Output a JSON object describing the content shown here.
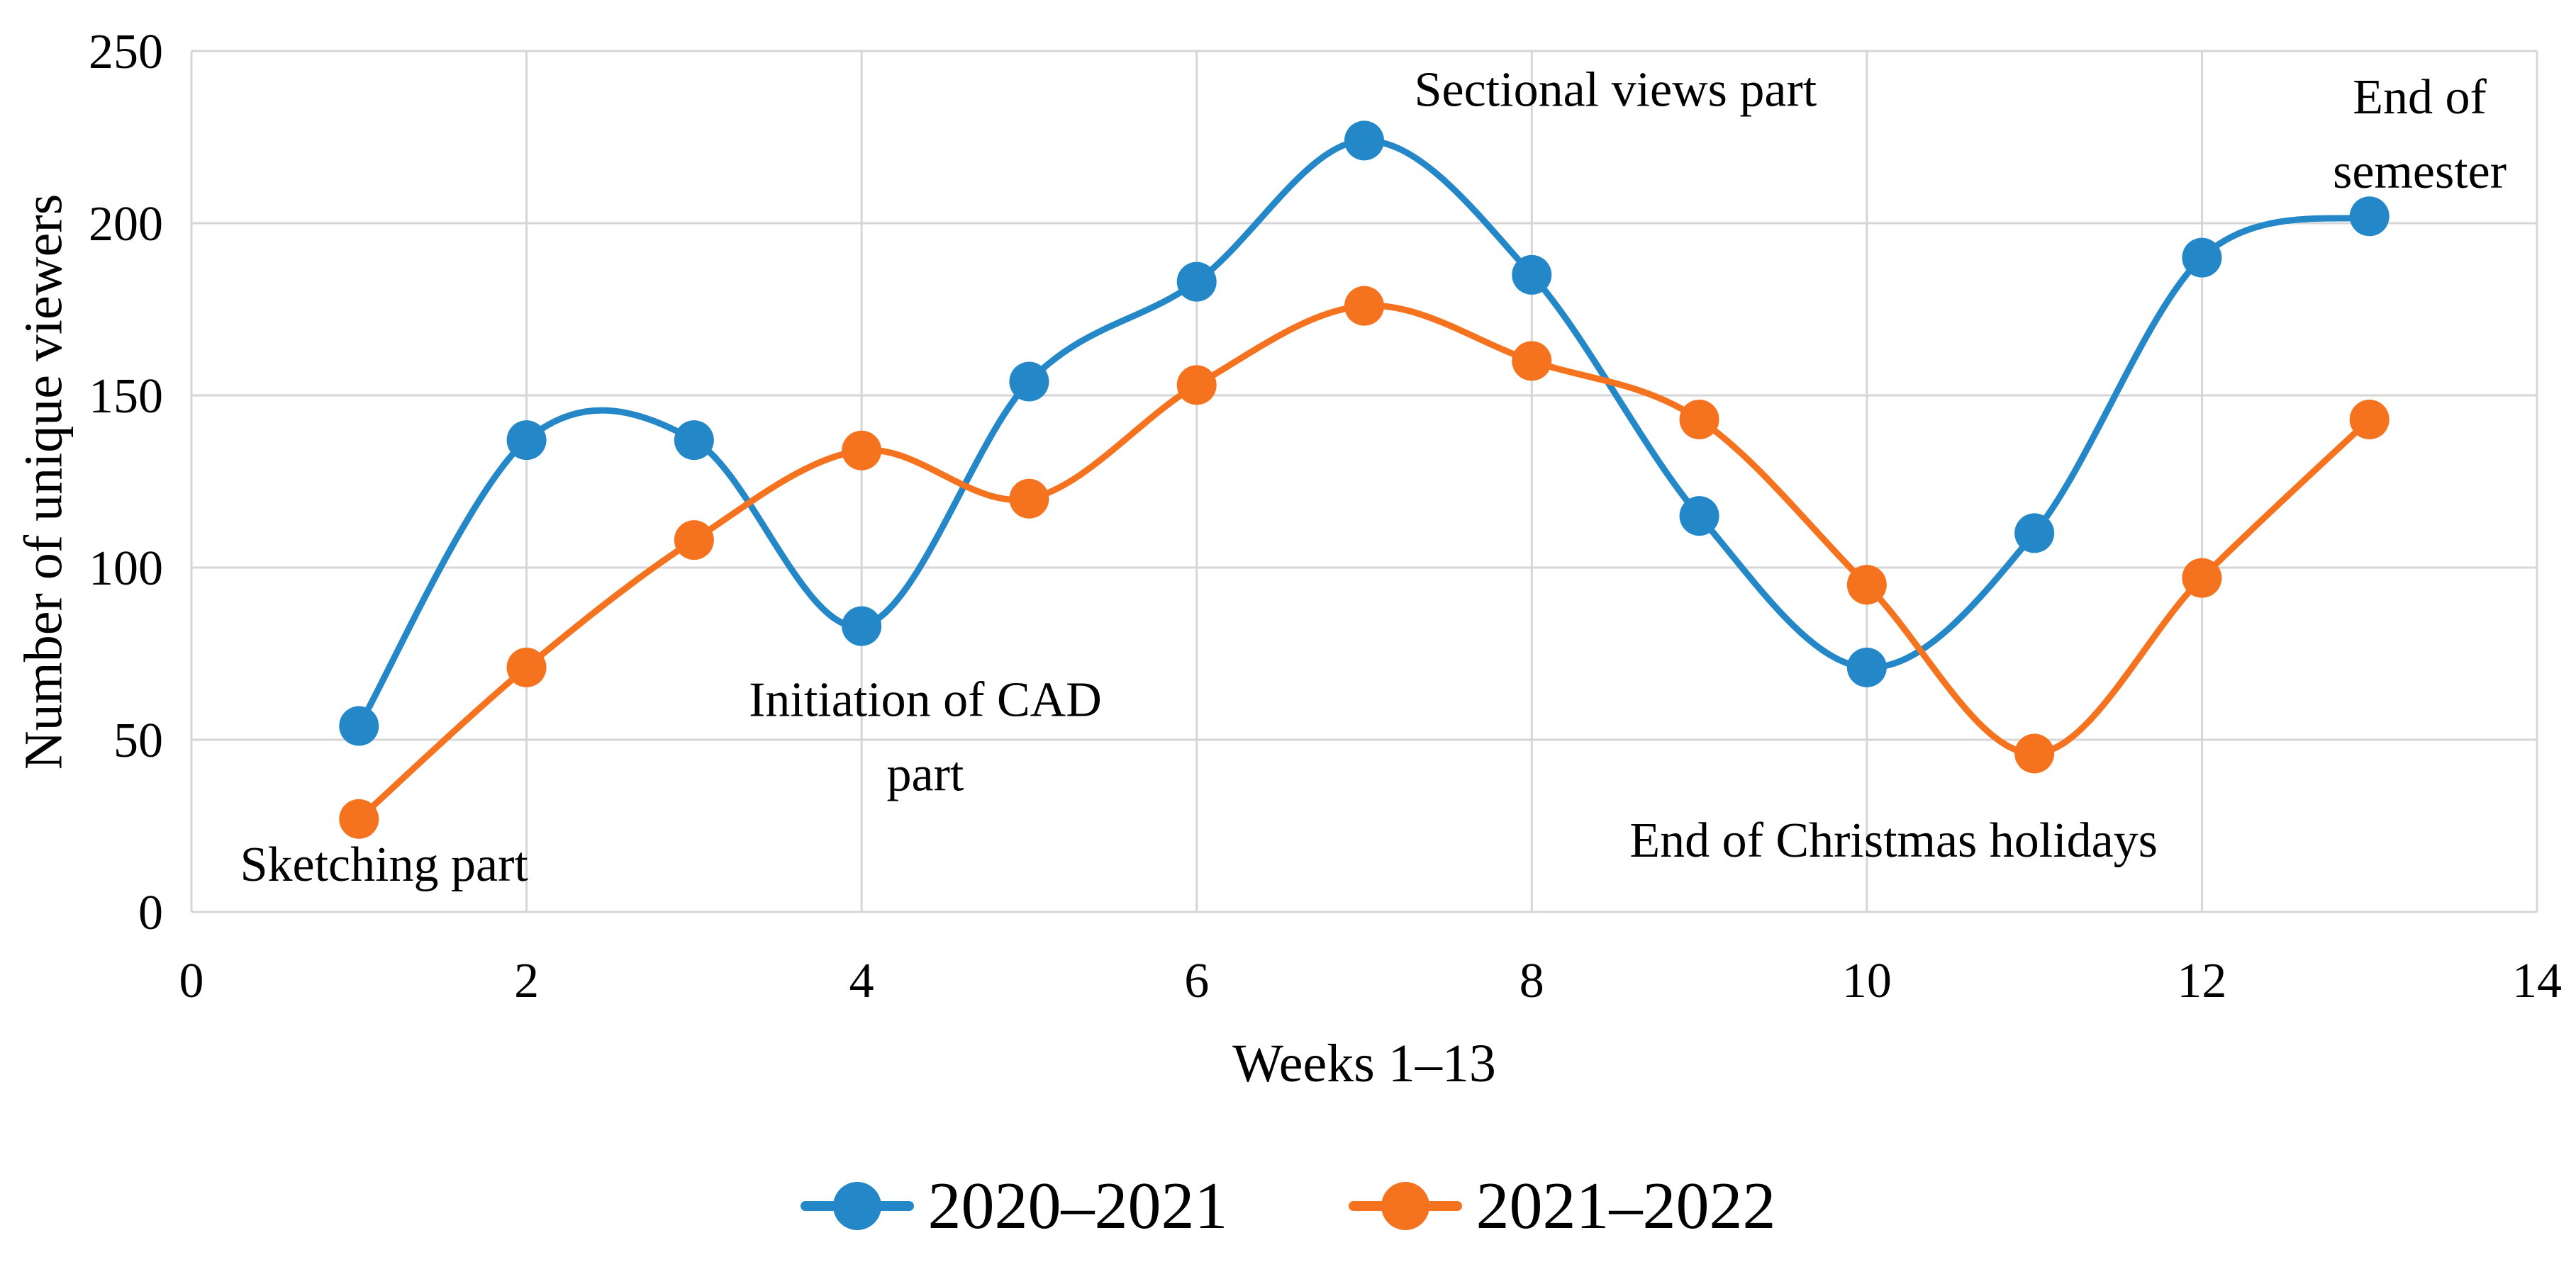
{
  "figure": {
    "background": "#ffffff",
    "text_color": "#000000"
  },
  "chart_data": {
    "type": "line",
    "title": "",
    "xlabel": "Weeks 1–13",
    "ylabel": "Number of unique viewers",
    "x": [
      1,
      2,
      3,
      4,
      5,
      6,
      7,
      8,
      9,
      10,
      11,
      12,
      13
    ],
    "series": [
      {
        "name": "2020–2021",
        "color": "#2387C8",
        "values": [
          54,
          137,
          137,
          83,
          154,
          183,
          224,
          185,
          115,
          71,
          110,
          190,
          202
        ]
      },
      {
        "name": "2021–2022",
        "color": "#F5731E",
        "values": [
          27,
          71,
          108,
          134,
          120,
          153,
          176,
          160,
          143,
          95,
          46,
          97,
          143
        ]
      }
    ],
    "xlim": [
      0,
      14
    ],
    "ylim": [
      0,
      250
    ],
    "xticks": [
      0,
      2,
      4,
      6,
      8,
      10,
      12,
      14
    ],
    "yticks": [
      0,
      50,
      100,
      150,
      200,
      250
    ],
    "grid": true,
    "gridline_color": "#D6D6D6",
    "legend_position": "bottom",
    "marker": "circle",
    "line_style": "smooth",
    "annotations": [
      {
        "lines": [
          "Sketching part"
        ],
        "x": 1.15,
        "y": 14
      },
      {
        "lines": [
          "Initiation of CAD",
          "part"
        ],
        "x": 4.38,
        "y": 51
      },
      {
        "lines": [
          "Sectional views part"
        ],
        "x": 8.5,
        "y": 239
      },
      {
        "lines": [
          "End of Christmas holidays"
        ],
        "x": 10.16,
        "y": 21
      },
      {
        "lines": [
          "End of",
          "semester"
        ],
        "x": 13.3,
        "y": 226
      }
    ]
  },
  "legend": {
    "items": [
      {
        "label": "2020–2021"
      },
      {
        "label": "2021–2022"
      }
    ]
  }
}
